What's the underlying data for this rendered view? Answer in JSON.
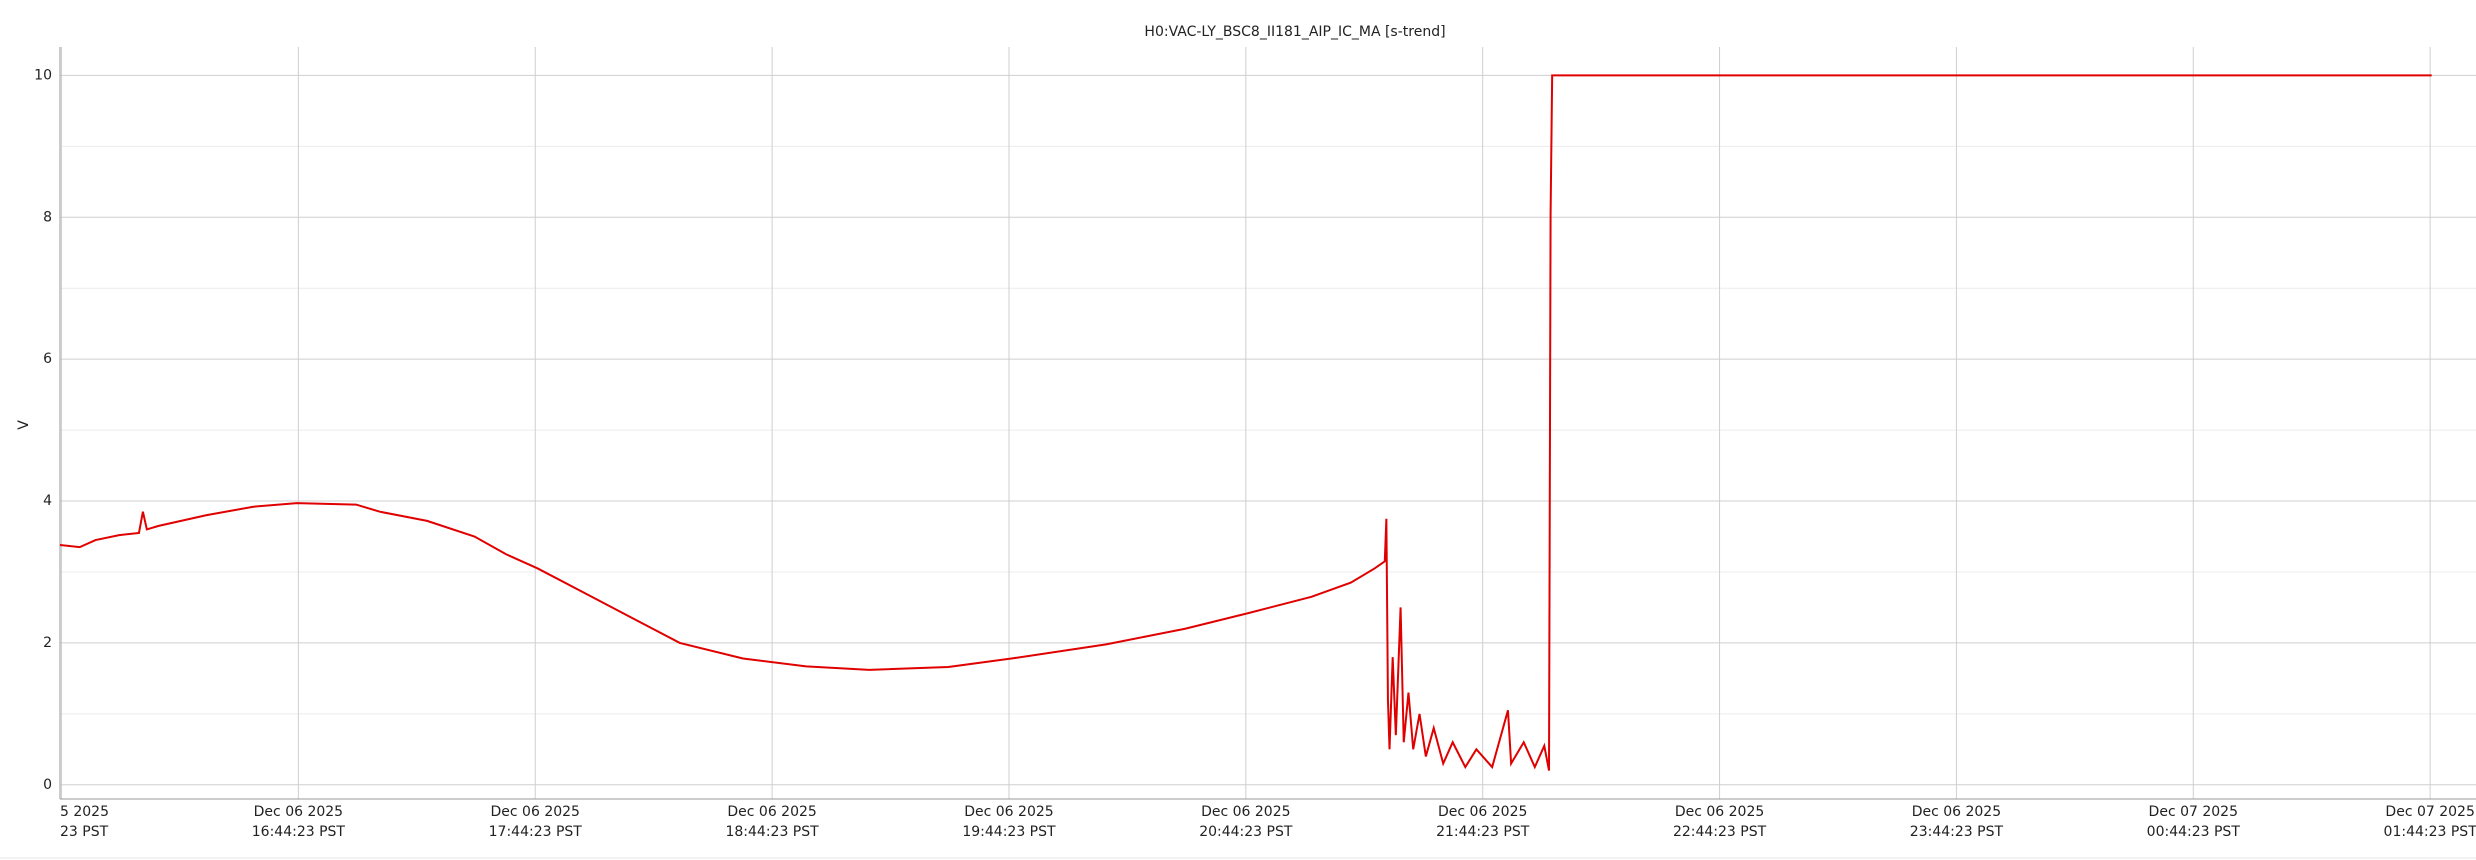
{
  "chart_data": {
    "type": "line",
    "title": "H0:VAC-LY_BSC8_II181_AIP_IC_MA [s-trend]",
    "ylabel": "V",
    "xlim": [
      "2025-12-06T15:44:00",
      "2025-12-07T01:56:00"
    ],
    "xticks": [
      {
        "value": "2025-12-06T15:44:23",
        "label": "5 2025\n23 PST"
      },
      {
        "value": "2025-12-06T16:44:23",
        "label": "Dec 06 2025\n16:44:23 PST"
      },
      {
        "value": "2025-12-06T17:44:23",
        "label": "Dec 06 2025\n17:44:23 PST"
      },
      {
        "value": "2025-12-06T18:44:23",
        "label": "Dec 06 2025\n18:44:23 PST"
      },
      {
        "value": "2025-12-06T19:44:23",
        "label": "Dec 06 2025\n19:44:23 PST"
      },
      {
        "value": "2025-12-06T20:44:23",
        "label": "Dec 06 2025\n20:44:23 PST"
      },
      {
        "value": "2025-12-06T21:44:23",
        "label": "Dec 06 2025\n21:44:23 PST"
      },
      {
        "value": "2025-12-06T22:44:23",
        "label": "Dec 06 2025\n22:44:23 PST"
      },
      {
        "value": "2025-12-06T23:44:23",
        "label": "Dec 06 2025\n23:44:23 PST"
      },
      {
        "value": "2025-12-07T00:44:23",
        "label": "Dec 07 2025\n00:44:23 PST"
      },
      {
        "value": "2025-12-07T01:44:23",
        "label": "Dec 07 2025\n01:44:23 PST"
      }
    ],
    "ylim": [
      -0.2,
      10.4
    ],
    "yticks": [
      0,
      2,
      4,
      6,
      8,
      10
    ],
    "minor_yticks": [
      1,
      3,
      5,
      7,
      9
    ],
    "grid": true,
    "series": [
      {
        "color": "#e00000",
        "x": [
          "2025-12-06T15:44:00",
          "2025-12-06T15:49:00",
          "2025-12-06T15:53:00",
          "2025-12-06T15:59:00",
          "2025-12-06T16:04:00",
          "2025-12-06T16:05:00",
          "2025-12-06T16:06:00",
          "2025-12-06T16:09:00",
          "2025-12-06T16:21:00",
          "2025-12-06T16:33:00",
          "2025-12-06T16:44:00",
          "2025-12-06T16:59:00",
          "2025-12-06T17:05:00",
          "2025-12-06T17:17:00",
          "2025-12-06T17:29:00",
          "2025-12-06T17:37:00",
          "2025-12-06T17:45:00",
          "2025-12-06T17:57:00",
          "2025-12-06T18:09:00",
          "2025-12-06T18:21:00",
          "2025-12-06T18:37:00",
          "2025-12-06T18:53:00",
          "2025-12-06T19:09:00",
          "2025-12-06T19:29:00",
          "2025-12-06T19:45:00",
          "2025-12-06T20:09:00",
          "2025-12-06T20:29:00",
          "2025-12-06T20:45:00",
          "2025-12-06T21:01:00",
          "2025-12-06T21:11:00",
          "2025-12-06T21:17:00",
          "2025-12-06T21:19:35",
          "2025-12-06T21:19:59",
          "2025-12-06T21:20:23",
          "2025-12-06T21:20:47",
          "2025-12-06T21:21:35",
          "2025-12-06T21:22:23",
          "2025-12-06T21:23:35",
          "2025-12-06T21:24:23",
          "2025-12-06T21:25:35",
          "2025-12-06T21:26:47",
          "2025-12-06T21:28:23",
          "2025-12-06T21:29:59",
          "2025-12-06T21:31:59",
          "2025-12-06T21:34:23",
          "2025-12-06T21:36:47",
          "2025-12-06T21:39:59",
          "2025-12-06T21:42:47",
          "2025-12-06T21:46:47",
          "2025-12-06T21:50:47",
          "2025-12-06T21:51:35",
          "2025-12-06T21:54:47",
          "2025-12-06T21:57:35",
          "2025-12-06T21:59:59",
          "2025-12-06T22:01:11",
          "2025-12-06T22:01:35",
          "2025-12-06T22:01:59",
          "2025-12-07T01:44:47"
        ],
        "values": [
          3.38,
          3.35,
          3.45,
          3.52,
          3.55,
          3.85,
          3.6,
          3.65,
          3.8,
          3.92,
          3.97,
          3.95,
          3.85,
          3.72,
          3.5,
          3.25,
          3.05,
          2.7,
          2.35,
          2.0,
          1.78,
          1.67,
          1.62,
          1.66,
          1.78,
          1.98,
          2.2,
          2.42,
          2.65,
          2.85,
          3.05,
          3.15,
          3.75,
          1.2,
          0.5,
          1.8,
          0.7,
          2.5,
          0.6,
          1.3,
          0.5,
          1.0,
          0.4,
          0.8,
          0.3,
          0.6,
          0.25,
          0.5,
          0.25,
          1.05,
          0.3,
          0.6,
          0.25,
          0.55,
          0.2,
          8.05,
          10.0,
          10.0
        ]
      }
    ]
  }
}
